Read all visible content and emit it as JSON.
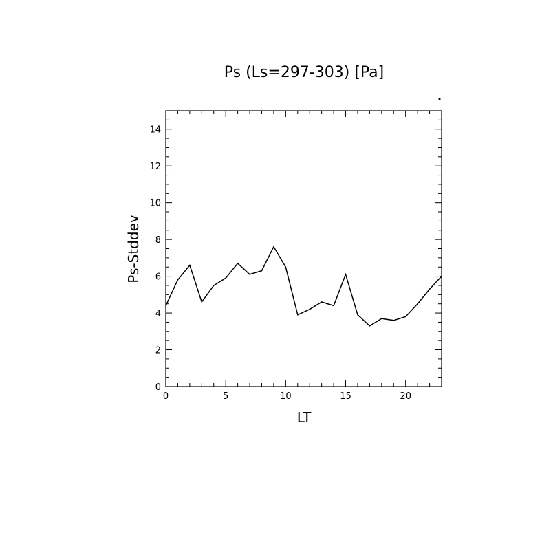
{
  "chart_data": {
    "type": "line",
    "title": "Ps (Ls=297-303) [Pa]",
    "xlabel": "LT",
    "ylabel": "Ps-Stddev",
    "xlim": [
      0,
      23
    ],
    "ylim": [
      0,
      15
    ],
    "xticks": [
      0,
      5,
      10,
      15,
      20
    ],
    "yticks": [
      0,
      2,
      4,
      6,
      8,
      10,
      12,
      14
    ],
    "grid": false,
    "series": [
      {
        "x": [
          0,
          1,
          2,
          3,
          4,
          5,
          6,
          7,
          8,
          9,
          10,
          11,
          12,
          13,
          14,
          15,
          16,
          17,
          18,
          19,
          20,
          21,
          22,
          23
        ],
        "values": [
          4.4,
          5.8,
          6.6,
          4.6,
          5.5,
          5.9,
          6.7,
          6.1,
          6.3,
          7.6,
          6.5,
          3.9,
          4.2,
          4.6,
          4.4,
          6.1,
          3.9,
          3.3,
          3.7,
          3.6,
          3.8,
          4.5,
          5.3,
          6.0
        ]
      }
    ]
  }
}
